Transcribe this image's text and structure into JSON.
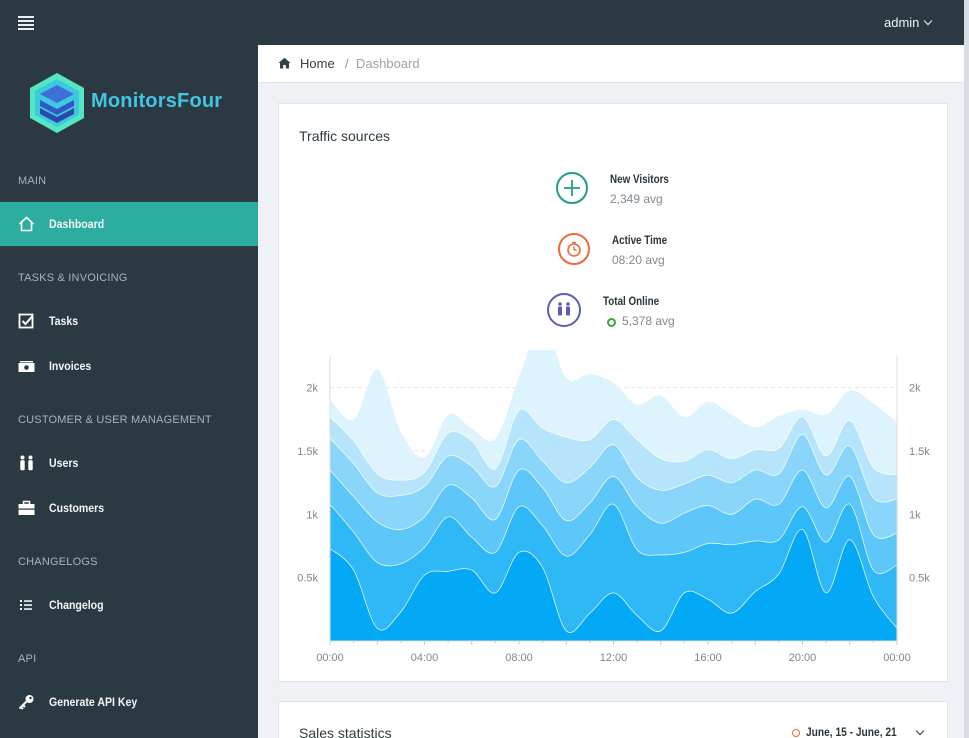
{
  "topbar": {
    "user": "admin"
  },
  "app": {
    "name": "MonitorsFour"
  },
  "sidebar": {
    "sections": [
      {
        "title": "MAIN",
        "items": [
          {
            "label": "Dashboard",
            "icon": "home-icon",
            "active": true
          }
        ]
      },
      {
        "title": "TASKS & INVOICING",
        "items": [
          {
            "label": "Tasks",
            "icon": "check-square-icon"
          },
          {
            "label": "Invoices",
            "icon": "money-icon"
          }
        ]
      },
      {
        "title": "CUSTOMER & USER MANAGEMENT",
        "items": [
          {
            "label": "Users",
            "icon": "users-icon"
          },
          {
            "label": "Customers",
            "icon": "briefcase-icon"
          }
        ]
      },
      {
        "title": "CHANGELOGS",
        "items": [
          {
            "label": "Changelog",
            "icon": "list-icon"
          }
        ]
      },
      {
        "title": "API",
        "items": [
          {
            "label": "Generate API Key",
            "icon": "key-icon"
          }
        ]
      }
    ]
  },
  "breadcrumb": {
    "home": "Home",
    "separator": "/",
    "current": "Dashboard"
  },
  "traffic": {
    "title": "Traffic sources",
    "stats": [
      {
        "label": "New Visitors",
        "value": "2,349 avg",
        "icon": "plus-icon",
        "color": "#1b9e8e"
      },
      {
        "label": "Active Time",
        "value": "08:20 avg",
        "icon": "stopwatch-icon",
        "color": "#ef6a3a"
      },
      {
        "label": "Total Online",
        "value": "5,378 avg",
        "icon": "users-icon",
        "color": "#5a5fb0",
        "status_color": "#3aa640"
      }
    ]
  },
  "chart_data": {
    "type": "area",
    "x": [
      "00:00",
      "01:00",
      "02:00",
      "03:00",
      "04:00",
      "05:00",
      "06:00",
      "07:00",
      "08:00",
      "09:00",
      "10:00",
      "11:00",
      "12:00",
      "13:00",
      "14:00",
      "15:00",
      "16:00",
      "17:00",
      "18:00",
      "19:00",
      "20:00",
      "21:00",
      "22:00",
      "23:00",
      "00:00"
    ],
    "xticks": [
      "00:00",
      "04:00",
      "08:00",
      "12:00",
      "16:00",
      "20:00",
      "00:00"
    ],
    "yticks": [
      "0.5k",
      "1k",
      "1.5k",
      "2k"
    ],
    "tick_values": [
      500,
      1000,
      1500,
      2000
    ],
    "ylim": [
      0,
      2250
    ],
    "grid": true,
    "colors": [
      "#03a9f4",
      "#2eb8f6",
      "#5cc7f8",
      "#8ad6fa",
      "#b5e4fb",
      "#ddf3fd"
    ],
    "series": [
      {
        "values": [
          730,
          560,
          100,
          230,
          520,
          550,
          560,
          380,
          700,
          580,
          80,
          220,
          380,
          200,
          80,
          380,
          330,
          220,
          390,
          530,
          880,
          380,
          800,
          350,
          100
        ]
      },
      {
        "values": [
          350,
          300,
          520,
          380,
          220,
          430,
          260,
          320,
          360,
          330,
          590,
          620,
          700,
          520,
          600,
          320,
          440,
          540,
          400,
          270,
          180,
          400,
          280,
          210,
          500
        ]
      },
      {
        "values": [
          270,
          280,
          320,
          270,
          240,
          250,
          310,
          260,
          290,
          300,
          280,
          250,
          220,
          340,
          250,
          310,
          300,
          240,
          330,
          280,
          290,
          270,
          220,
          280,
          250
        ]
      },
      {
        "values": [
          250,
          260,
          230,
          270,
          240,
          230,
          250,
          260,
          240,
          210,
          300,
          280,
          250,
          230,
          260,
          230,
          240,
          250,
          230,
          240,
          280,
          260,
          240,
          290,
          270
        ]
      },
      {
        "values": [
          170,
          180,
          150,
          120,
          110,
          180,
          200,
          140,
          230,
          260,
          360,
          220,
          200,
          300,
          250,
          180,
          200,
          190,
          160,
          200,
          140,
          150,
          200,
          240,
          190
        ]
      },
      {
        "values": [
          140,
          170,
          830,
          390,
          120,
          150,
          100,
          240,
          270,
          840,
          470,
          520,
          290,
          280,
          500,
          350,
          380,
          350,
          180,
          260,
          60,
          330,
          240,
          510,
          420
        ]
      }
    ]
  },
  "sales": {
    "title": "Sales statistics",
    "range": "June, 15 - June, 21"
  }
}
